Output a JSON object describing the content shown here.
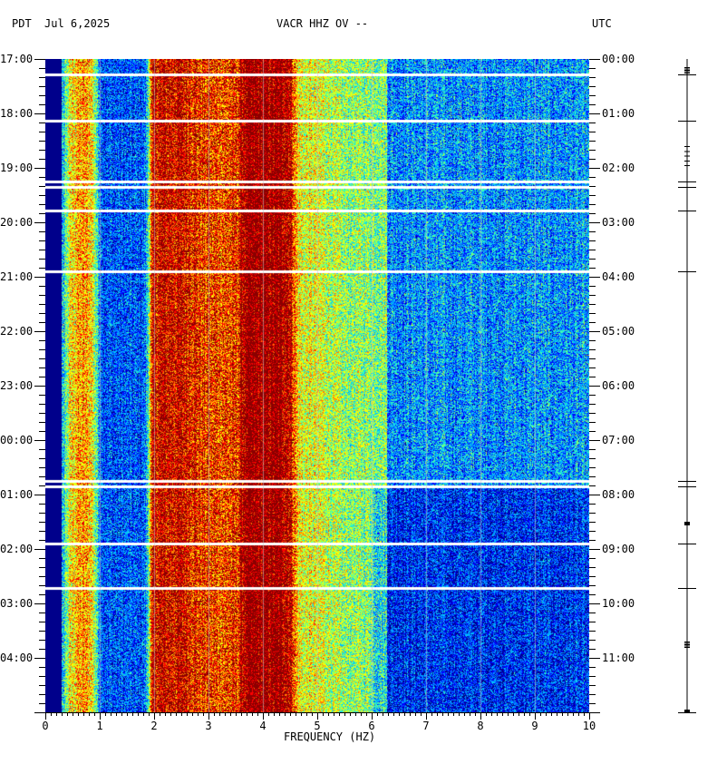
{
  "header": {
    "tz_left": "PDT",
    "date": "Jul 6,2025",
    "station": "VACR HHZ OV --",
    "tz_right": "UTC"
  },
  "chart_data": {
    "type": "heatmap",
    "title": "VACR HHZ OV --",
    "xlabel": "FREQUENCY (HZ)",
    "xlim": [
      0,
      10
    ],
    "x_ticks": [
      "0",
      "1",
      "2",
      "3",
      "4",
      "5",
      "6",
      "7",
      "8",
      "9",
      "10"
    ],
    "y_ticks_left": [
      "17:00",
      "18:00",
      "19:00",
      "20:00",
      "21:00",
      "22:00",
      "23:00",
      "00:00",
      "01:00",
      "02:00",
      "03:00",
      "04:00"
    ],
    "y_ticks_right": [
      "00:00",
      "01:00",
      "02:00",
      "03:00",
      "04:00",
      "05:00",
      "06:00",
      "07:00",
      "08:00",
      "09:00",
      "10:00",
      "11:00"
    ],
    "hours_shown": 12,
    "data_gaps_hours": [
      0.28,
      1.13,
      2.25,
      2.35,
      2.78,
      3.9,
      7.75,
      7.85,
      8.9,
      9.72
    ],
    "colorscale": [
      "#00008b",
      "#0000ff",
      "#0070ff",
      "#00c0ff",
      "#40ffb0",
      "#c0ff30",
      "#ffff00",
      "#ff8000",
      "#ff0000",
      "#8b0000"
    ],
    "spectral_bands_hz": [
      {
        "center": 0.1,
        "level": 0.0
      },
      {
        "center": 0.55,
        "level": 0.72
      },
      {
        "center": 1.3,
        "level": 0.22
      },
      {
        "center": 2.5,
        "level": 0.9
      },
      {
        "center": 3.0,
        "level": 0.82
      },
      {
        "center": 4.15,
        "level": 0.97
      },
      {
        "center": 5.0,
        "level": 0.6
      },
      {
        "center": 5.5,
        "level": 0.52
      },
      {
        "center": 7.5,
        "level": 0.3
      },
      {
        "center": 9.0,
        "level": 0.3
      }
    ]
  }
}
